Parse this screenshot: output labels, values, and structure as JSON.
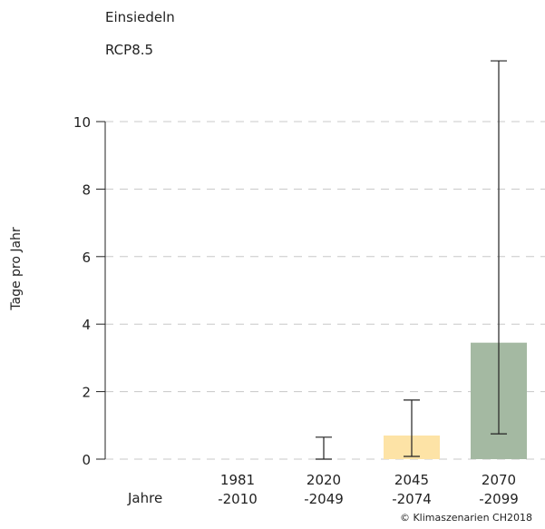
{
  "header": {
    "location": "Einsiedeln",
    "scenario": "RCP8.5"
  },
  "footer": {
    "copyright": "© Klimaszenarien CH2018"
  },
  "chart_data": {
    "type": "bar",
    "title": "Einsiedeln",
    "subtitle": "RCP8.5",
    "ylabel": "Tage pro Jahr",
    "xlabel": "Jahre",
    "ylim": [
      0,
      12
    ],
    "yticks": [
      0,
      2,
      4,
      6,
      8,
      10
    ],
    "grid": true,
    "categories": [
      {
        "line1": "1981",
        "line2": "-2010"
      },
      {
        "line1": "2020",
        "line2": "-2049"
      },
      {
        "line1": "2045",
        "line2": "-2074"
      },
      {
        "line1": "2070",
        "line2": "-2099"
      }
    ],
    "values": [
      0,
      0,
      0.7,
      3.45
    ],
    "error_low": [
      null,
      0,
      0.08,
      0.75
    ],
    "error_high": [
      null,
      0.65,
      1.75,
      11.8
    ],
    "colors": [
      "#ffffff",
      "#ffffff",
      "#fde3a6",
      "#a4b9a2"
    ]
  }
}
